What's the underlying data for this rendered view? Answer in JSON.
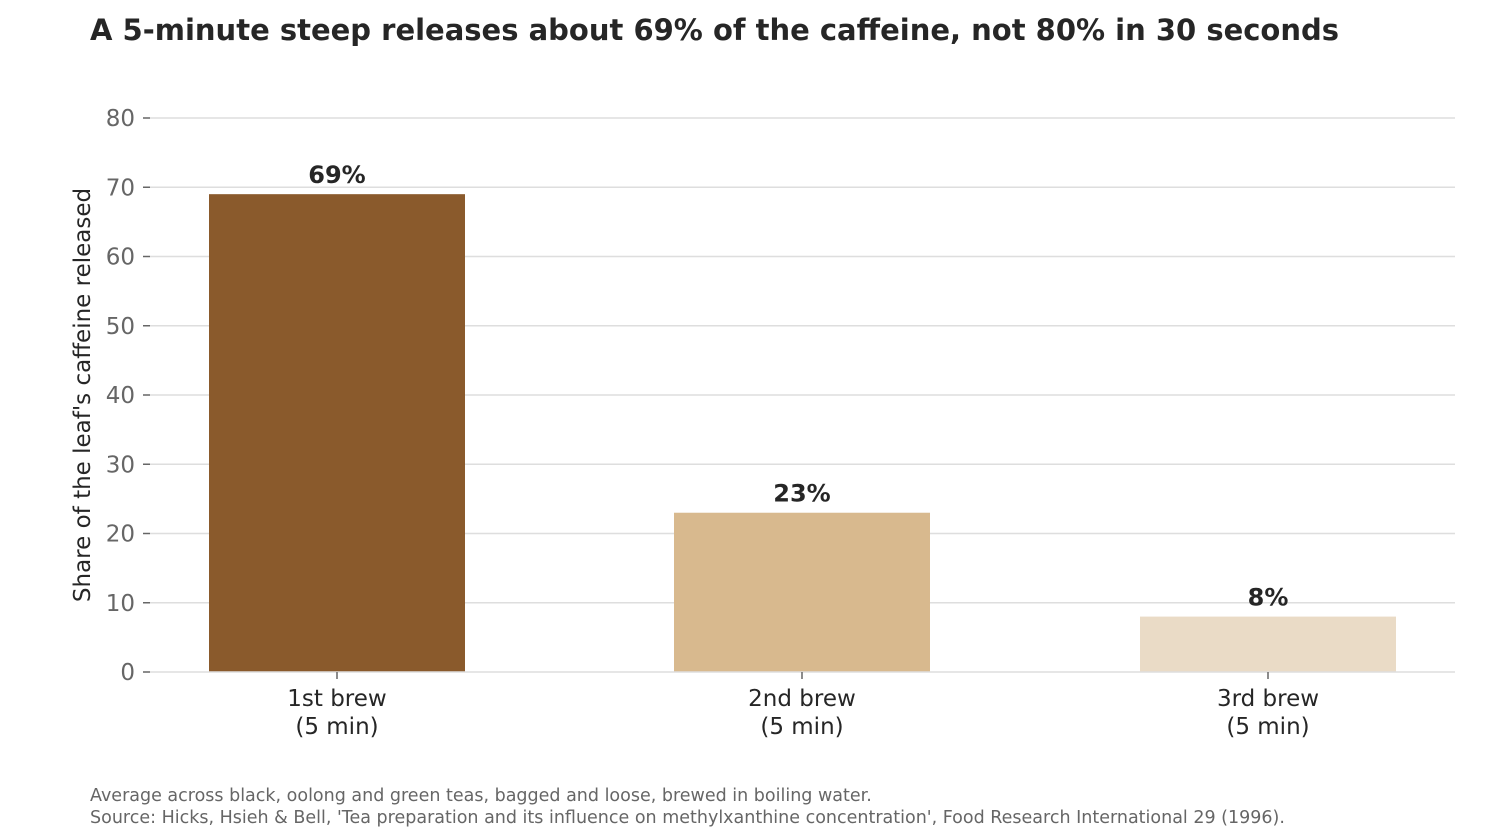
{
  "chart_data": {
    "type": "bar",
    "title": "A 5-minute steep releases about 69% of the caffeine, not 80% in 30 seconds",
    "xlabel": "",
    "ylabel": "Share of the leaf's caffeine released",
    "ylim": [
      0,
      80
    ],
    "yticks": [
      0,
      10,
      20,
      30,
      40,
      50,
      60,
      70,
      80
    ],
    "grid": true,
    "legend": "none",
    "categories": [
      [
        "1st brew",
        "(5 min)"
      ],
      [
        "2nd brew",
        "(5 min)"
      ],
      [
        "3rd brew",
        "(5 min)"
      ]
    ],
    "values": [
      69,
      23,
      8
    ],
    "data_labels": [
      "69%",
      "23%",
      "8%"
    ],
    "colors": [
      "#8a5a2c",
      "#d8b98e",
      "#eadbc6"
    ],
    "footnotes": [
      "Average across black, oolong and green teas, bagged and loose, brewed in boiling water.",
      "Source: Hicks, Hsieh & Bell, 'Tea preparation and its influence on methylxanthine concentration', Food Research International 29 (1996)."
    ]
  }
}
